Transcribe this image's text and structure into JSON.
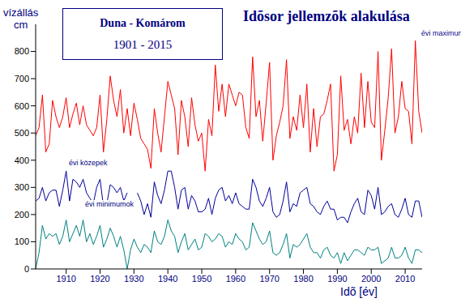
{
  "chart_data": {
    "type": "line",
    "title": "Idõsor jellemzõk alakulása",
    "subtitle": [
      "Duna - Komárom",
      "1901 - 2015"
    ],
    "ylabel": [
      "vízállás",
      "cm"
    ],
    "xlabel": "Idõ [év]",
    "legend": "inline",
    "grid": false,
    "xlim": [
      1901,
      2015
    ],
    "xticks": [
      1910,
      1920,
      1930,
      1940,
      1950,
      1960,
      1970,
      1980,
      1990,
      2000,
      2010
    ],
    "ylim": [
      0,
      900
    ],
    "yticks": [
      0,
      100,
      200,
      300,
      400,
      500,
      600,
      700,
      800
    ],
    "x": [
      1901,
      1902,
      1903,
      1904,
      1905,
      1906,
      1907,
      1908,
      1909,
      1910,
      1911,
      1912,
      1913,
      1914,
      1915,
      1916,
      1917,
      1918,
      1919,
      1920,
      1921,
      1922,
      1923,
      1924,
      1925,
      1926,
      1927,
      1928,
      1929,
      1930,
      1931,
      1932,
      1933,
      1934,
      1935,
      1936,
      1937,
      1938,
      1939,
      1940,
      1941,
      1942,
      1943,
      1944,
      1945,
      1946,
      1947,
      1948,
      1949,
      1950,
      1951,
      1952,
      1953,
      1954,
      1955,
      1956,
      1957,
      1958,
      1959,
      1960,
      1961,
      1962,
      1963,
      1964,
      1965,
      1966,
      1967,
      1968,
      1969,
      1970,
      1971,
      1972,
      1973,
      1974,
      1975,
      1976,
      1977,
      1978,
      1979,
      1980,
      1981,
      1982,
      1983,
      1984,
      1985,
      1986,
      1987,
      1988,
      1989,
      1990,
      1991,
      1992,
      1993,
      1994,
      1995,
      1996,
      1997,
      1998,
      1999,
      2000,
      2001,
      2002,
      2003,
      2004,
      2005,
      2006,
      2007,
      2008,
      2009,
      2010,
      2011,
      2012,
      2013,
      2014,
      2015
    ],
    "series": [
      {
        "name": "évi maximum",
        "color": "#ff0000",
        "values": [
          490,
          520,
          640,
          430,
          460,
          620,
          560,
          520,
          560,
          630,
          520,
          570,
          610,
          530,
          600,
          530,
          510,
          490,
          520,
          640,
          430,
          550,
          710,
          620,
          560,
          660,
          500,
          590,
          490,
          610,
          550,
          480,
          460,
          440,
          370,
          590,
          500,
          430,
          560,
          690,
          640,
          590,
          420,
          620,
          560,
          450,
          630,
          530,
          470,
          500,
          360,
          550,
          490,
          750,
          580,
          680,
          560,
          680,
          640,
          600,
          650,
          640,
          520,
          480,
          780,
          560,
          620,
          470,
          610,
          760,
          400,
          490,
          540,
          600,
          770,
          480,
          560,
          510,
          640,
          520,
          680,
          430,
          590,
          450,
          560,
          570,
          620,
          680,
          360,
          420,
          710,
          510,
          550,
          460,
          560,
          500,
          720,
          520,
          690,
          540,
          520,
          800,
          400,
          510,
          630,
          810,
          500,
          560,
          690,
          590,
          580,
          460,
          840,
          580,
          500
        ]
      },
      {
        "name": "évi közepek",
        "color": "#000099",
        "values": [
          250,
          260,
          300,
          250,
          280,
          290,
          290,
          230,
          290,
          360,
          250,
          330,
          320,
          300,
          330,
          280,
          260,
          240,
          300,
          330,
          230,
          240,
          310,
          300,
          280,
          300,
          250,
          280,
          null,
          null,
          280,
          250,
          200,
          240,
          190,
          320,
          270,
          240,
          290,
          360,
          360,
          300,
          220,
          290,
          300,
          220,
          270,
          250,
          210,
          210,
          220,
          260,
          200,
          260,
          290,
          300,
          250,
          270,
          240,
          280,
          240,
          230,
          220,
          220,
          330,
          300,
          250,
          230,
          260,
          300,
          210,
          190,
          200,
          250,
          320,
          210,
          240,
          230,
          280,
          290,
          300,
          240,
          230,
          210,
          200,
          230,
          250,
          220,
          220,
          180,
          190,
          190,
          170,
          210,
          240,
          260,
          210,
          200,
          290,
          270,
          220,
          300,
          200,
          210,
          230,
          240,
          200,
          190,
          220,
          260,
          200,
          190,
          250,
          250,
          190
        ]
      },
      {
        "name": "évi minimumok",
        "color": "#008080",
        "values": [
          0,
          60,
          160,
          110,
          130,
          120,
          130,
          90,
          120,
          180,
          100,
          130,
          160,
          120,
          180,
          100,
          130,
          90,
          120,
          160,
          80,
          110,
          150,
          120,
          80,
          120,
          70,
          0,
          70,
          110,
          80,
          60,
          90,
          80,
          60,
          140,
          100,
          90,
          120,
          180,
          140,
          120,
          60,
          100,
          130,
          70,
          90,
          110,
          70,
          80,
          130,
          120,
          100,
          110,
          130,
          120,
          80,
          100,
          90,
          130,
          110,
          100,
          70,
          80,
          170,
          140,
          110,
          90,
          100,
          140,
          60,
          50,
          60,
          90,
          130,
          40,
          90,
          80,
          90,
          110,
          130,
          80,
          60,
          60,
          40,
          70,
          80,
          50,
          40,
          60,
          20,
          60,
          30,
          50,
          70,
          70,
          60,
          50,
          80,
          70,
          70,
          80,
          20,
          30,
          40,
          80,
          40,
          40,
          50,
          80,
          40,
          20,
          70,
          70,
          60
        ]
      }
    ]
  }
}
